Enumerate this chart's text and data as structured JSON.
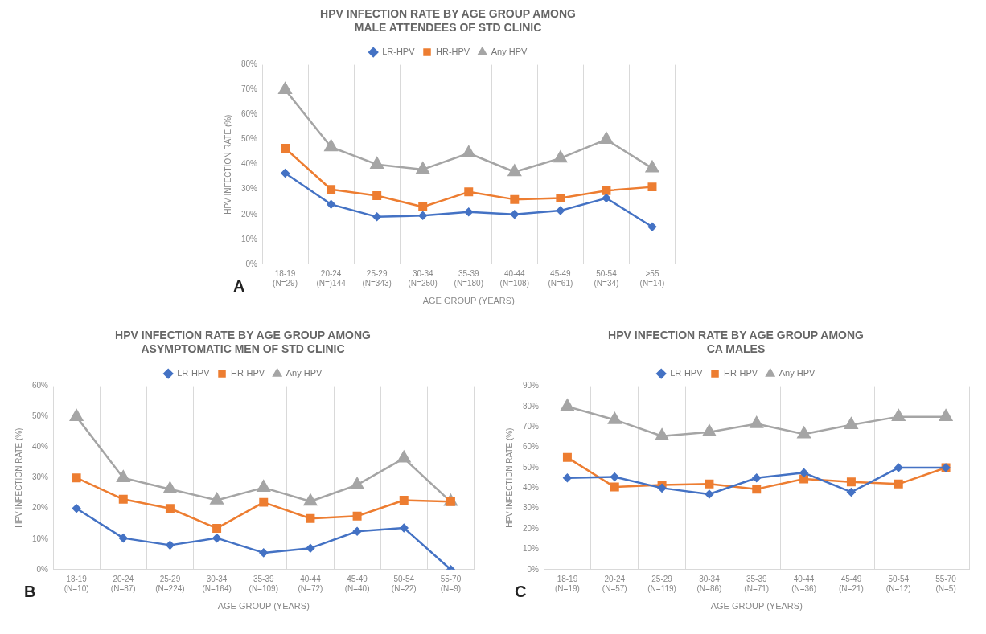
{
  "chart_data": [
    {
      "type": "line",
      "title": "HPV INFECTION RATE BY AGE GROUP AMONG\nMALE ATTENDEES OF STD CLINIC",
      "xlabel": "AGE GROUP (YEARS)",
      "ylabel": "HPV INFECTION RATE (%)",
      "annotations": [
        "A"
      ],
      "categories": [
        "18-19\n(N=29)",
        "20-24\n(N=)144",
        "25-29\n(N=343)",
        "30-34\n(N=250)",
        "35-39\n(N=180)",
        "40-44\n(N=108)",
        "45-49\n(N=61)",
        "50-54\n(N=34)",
        ">55\n(N=14)"
      ],
      "series": [
        {
          "name": "LR-HPV",
          "color": "#4472c4",
          "marker": "diamond",
          "values": [
            36.5,
            24,
            19,
            19.5,
            21,
            20,
            21.5,
            26.5,
            15
          ]
        },
        {
          "name": "HR-HPV",
          "color": "#ed7d31",
          "marker": "square",
          "values": [
            46.5,
            30,
            27.5,
            23,
            29,
            26,
            26.5,
            29.5,
            31
          ]
        },
        {
          "name": "Any HPV",
          "color": "#a5a5a5",
          "marker": "triangle",
          "values": [
            70,
            47,
            40,
            38,
            44.5,
            37,
            42.5,
            50,
            38.5
          ]
        }
      ],
      "ylim": [
        0,
        80
      ],
      "yticks": [
        {
          "value": 0,
          "label": "0%"
        },
        {
          "value": 10,
          "label": "10%"
        },
        {
          "value": 20,
          "label": "20%"
        },
        {
          "value": 30,
          "label": "30%"
        },
        {
          "value": 40,
          "label": "40%"
        },
        {
          "value": 50,
          "label": "50%"
        },
        {
          "value": 60,
          "label": "60%"
        },
        {
          "value": 70,
          "label": "70%"
        },
        {
          "value": 80,
          "label": "80%"
        }
      ],
      "grid": "x",
      "legend": "top",
      "line_style": "solid"
    },
    {
      "type": "line",
      "title": "HPV INFECTION RATE BY AGE GROUP AMONG\nASYMPTOMATIC MEN OF STD CLINIC",
      "xlabel": "AGE GROUP (YEARS)",
      "ylabel": "HPV INFECTION RATE (%)",
      "annotations": [
        "B"
      ],
      "categories": [
        "18-19\n(N=10)",
        "20-24\n(N=87)",
        "25-29\n(N=224)",
        "30-34\n(N=164)",
        "35-39\n(N=109)",
        "40-44\n(N=72)",
        "45-49\n(N=40)",
        "50-54\n(N=22)",
        "55-70\n(N=9)"
      ],
      "series": [
        {
          "name": "LR-HPV",
          "color": "#4472c4",
          "marker": "diamond",
          "values": [
            20,
            10.3,
            8,
            10.3,
            5.5,
            7,
            12.5,
            13.6,
            0
          ]
        },
        {
          "name": "HR-HPV",
          "color": "#ed7d31",
          "marker": "square",
          "values": [
            30,
            23,
            20,
            13.5,
            22,
            16.7,
            17.5,
            22.7,
            22.2
          ]
        },
        {
          "name": "Any HPV",
          "color": "#a5a5a5",
          "marker": "triangle",
          "values": [
            50,
            30,
            26.3,
            22.7,
            26.8,
            22.3,
            27.7,
            36.4,
            22.2
          ]
        }
      ],
      "ylim": [
        0,
        60
      ],
      "yticks": [
        {
          "value": 0,
          "label": "0%"
        },
        {
          "value": 10,
          "label": "10%"
        },
        {
          "value": 20,
          "label": "20%"
        },
        {
          "value": 30,
          "label": "30%"
        },
        {
          "value": 40,
          "label": "40%"
        },
        {
          "value": 50,
          "label": "50%"
        },
        {
          "value": 60,
          "label": "60%"
        }
      ],
      "grid": "x",
      "legend": "top",
      "line_style": "solid"
    },
    {
      "type": "line",
      "title": "HPV INFECTION RATE BY AGE GROUP AMONG\nCA MALES",
      "xlabel": "AGE GROUP (YEARS)",
      "ylabel": "HPV INFECTION RATE (%)",
      "annotations": [
        "C"
      ],
      "categories": [
        "18-19\n(N=19)",
        "20-24\n(N=57)",
        "25-29\n(N=119)",
        "30-34\n(N=86)",
        "35-39\n(N=71)",
        "40-44\n(N=36)",
        "45-49\n(N=21)",
        "50-54\n(N=12)",
        "55-70\n(N=5)"
      ],
      "series": [
        {
          "name": "LR-HPV",
          "color": "#4472c4",
          "marker": "diamond",
          "values": [
            45,
            45.5,
            40,
            37,
            45,
            47.5,
            38,
            50,
            50
          ]
        },
        {
          "name": "HR-HPV",
          "color": "#ed7d31",
          "marker": "square",
          "values": [
            55,
            40.5,
            41.5,
            42,
            39.5,
            44.5,
            43,
            42,
            50
          ]
        },
        {
          "name": "Any HPV",
          "color": "#a5a5a5",
          "marker": "triangle",
          "values": [
            80,
            73.5,
            65.5,
            67.5,
            71.5,
            66.5,
            71,
            75,
            75
          ]
        }
      ],
      "ylim": [
        0,
        90
      ],
      "yticks": [
        {
          "value": 0,
          "label": "0%"
        },
        {
          "value": 10,
          "label": "10%"
        },
        {
          "value": 20,
          "label": "20%"
        },
        {
          "value": 30,
          "label": "30%"
        },
        {
          "value": 40,
          "label": "40%"
        },
        {
          "value": 50,
          "label": "50%"
        },
        {
          "value": 60,
          "label": "60%"
        },
        {
          "value": 70,
          "label": "70%"
        },
        {
          "value": 80,
          "label": "80%"
        },
        {
          "value": 90,
          "label": "90%"
        }
      ],
      "grid": "x",
      "legend": "top",
      "line_style": "solid"
    }
  ]
}
